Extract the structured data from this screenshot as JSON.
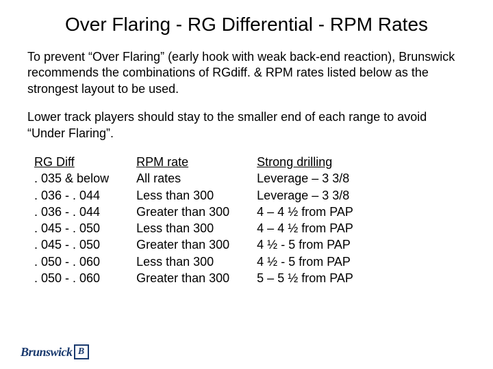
{
  "title": "Over Flaring - RG Differential - RPM Rates",
  "para1": "To prevent “Over Flaring” (early hook with weak back-end reaction), Brunswick recommends the combinations of RGdiff. & RPM rates listed below as the strongest layout to be used.",
  "para2": "Lower track players should stay to the smaller end of each range to avoid “Under Flaring”.",
  "columns": {
    "rgdiff": {
      "header": "RG Diff",
      "rows": [
        ". 035 & below",
        ". 036 - . 044",
        ". 036 - . 044",
        ". 045 - . 050",
        ". 045 - . 050",
        ". 050 - . 060",
        ". 050 - . 060"
      ]
    },
    "rpm": {
      "header": "RPM rate",
      "rows": [
        "All rates",
        "Less than 300",
        "Greater than 300",
        "Less than 300",
        "Greater than 300",
        "Less than 300",
        "Greater than 300"
      ]
    },
    "drill": {
      "header": "Strong drilling",
      "rows": [
        "Leverage – 3 3/8",
        "Leverage – 3 3/8",
        "4 – 4 ½ from PAP",
        "4 – 4 ½ from PAP",
        "4 ½ - 5 from PAP",
        "4 ½ - 5 from PAP",
        "5 – 5 ½ from PAP"
      ]
    }
  },
  "logo": {
    "letter": "B",
    "text": "Brunswick",
    "color": "#1a3a6e"
  },
  "style": {
    "background": "#ffffff",
    "text_color": "#000000",
    "title_fontsize": 28,
    "body_fontsize": 18,
    "font_family": "Arial"
  }
}
